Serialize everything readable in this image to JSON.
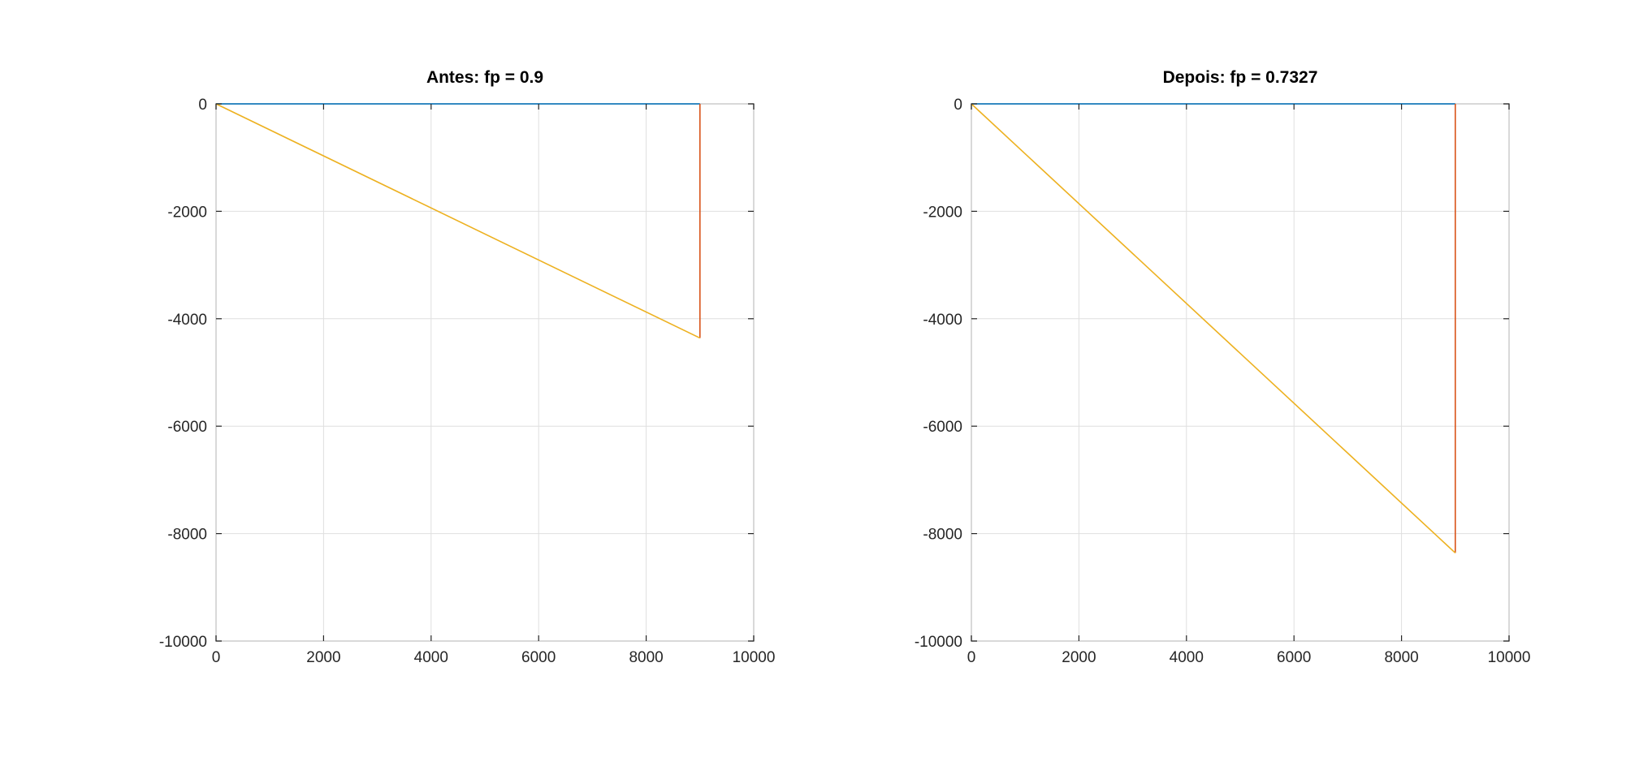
{
  "chart_data": [
    {
      "type": "line",
      "title": "Antes: fp = 0.9",
      "xlabel": "",
      "ylabel": "",
      "xlim": [
        0,
        10000
      ],
      "ylim": [
        -10000,
        0
      ],
      "xticks": [
        0,
        2000,
        4000,
        6000,
        8000,
        10000
      ],
      "yticks": [
        -10000,
        -8000,
        -6000,
        -4000,
        -2000,
        0
      ],
      "xtick_labels": [
        "0",
        "2000",
        "4000",
        "6000",
        "8000",
        "10000"
      ],
      "ytick_labels": [
        "-10000",
        "-8000",
        "-6000",
        "-4000",
        "-2000",
        "0"
      ],
      "grid": true,
      "series": [
        {
          "color": "#0072BD",
          "x": [
            0,
            9000
          ],
          "y": [
            0,
            0
          ]
        },
        {
          "color": "#D95319",
          "x": [
            9000,
            9000
          ],
          "y": [
            0,
            -4359
          ]
        },
        {
          "color": "#EDB120",
          "x": [
            0,
            9000
          ],
          "y": [
            0,
            -4359
          ]
        }
      ]
    },
    {
      "type": "line",
      "title": "Depois: fp = 0.7327",
      "xlabel": "",
      "ylabel": "",
      "xlim": [
        0,
        10000
      ],
      "ylim": [
        -10000,
        0
      ],
      "xticks": [
        0,
        2000,
        4000,
        6000,
        8000,
        10000
      ],
      "yticks": [
        -10000,
        -8000,
        -6000,
        -4000,
        -2000,
        0
      ],
      "xtick_labels": [
        "0",
        "2000",
        "4000",
        "6000",
        "8000",
        "10000"
      ],
      "ytick_labels": [
        "-10000",
        "-8000",
        "-6000",
        "-4000",
        "-2000",
        "0"
      ],
      "grid": true,
      "series": [
        {
          "color": "#0072BD",
          "x": [
            0,
            9000
          ],
          "y": [
            0,
            0
          ]
        },
        {
          "color": "#D95319",
          "x": [
            9000,
            9000
          ],
          "y": [
            0,
            -8360
          ]
        },
        {
          "color": "#EDB120",
          "x": [
            0,
            9000
          ],
          "y": [
            0,
            -8360
          ]
        }
      ]
    }
  ]
}
